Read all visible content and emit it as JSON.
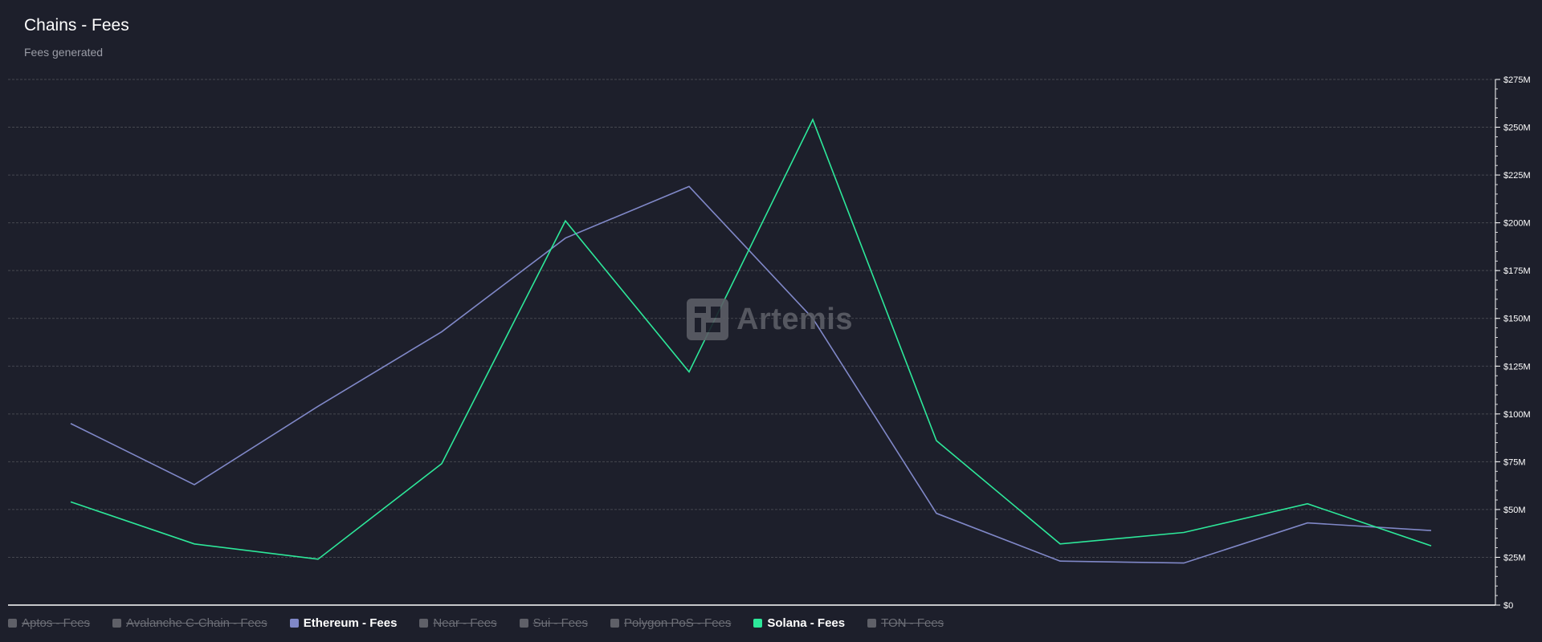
{
  "header": {
    "title": "Chains - Fees",
    "subtitle": "Fees generated"
  },
  "watermark": {
    "text": "Artemis"
  },
  "colors": {
    "ethereum": "#8088c8",
    "solana": "#2de89a",
    "disabled": "#5f6068",
    "grid": "#45474f",
    "axis": "#ffffff"
  },
  "legend": [
    {
      "label": "Aptos - Fees",
      "active": false,
      "color": "#5f6068"
    },
    {
      "label": "Avalanche C-Chain - Fees",
      "active": false,
      "color": "#5f6068"
    },
    {
      "label": "Ethereum - Fees",
      "active": true,
      "color": "#8088c8"
    },
    {
      "label": "Near - Fees",
      "active": false,
      "color": "#5f6068"
    },
    {
      "label": "Sui - Fees",
      "active": false,
      "color": "#5f6068"
    },
    {
      "label": "Polygon PoS - Fees",
      "active": false,
      "color": "#5f6068"
    },
    {
      "label": "Solana - Fees",
      "active": true,
      "color": "#2de89a"
    },
    {
      "label": "TON - Fees",
      "active": false,
      "color": "#5f6068"
    }
  ],
  "chart_data": {
    "type": "line",
    "title": "Chains - Fees",
    "subtitle": "Fees generated",
    "xlabel": "",
    "ylabel": "",
    "ylim": [
      0,
      275
    ],
    "y_unit": "M USD",
    "y_ticks": [
      0,
      25,
      50,
      75,
      100,
      125,
      150,
      175,
      200,
      225,
      250,
      275
    ],
    "y_tick_labels": [
      "$0",
      "$25M",
      "$50M",
      "$75M",
      "$100M",
      "$125M",
      "$150M",
      "$175M",
      "$200M",
      "$225M",
      "$250M",
      "$275M"
    ],
    "y_axis_position": "right",
    "grid": true,
    "legend_position": "bottom-left",
    "x": [
      1,
      2,
      3,
      4,
      5,
      6,
      7,
      8,
      9,
      10,
      11,
      12
    ],
    "series": [
      {
        "name": "Ethereum - Fees",
        "color": "#8088c8",
        "values": [
          95,
          63,
          104,
          143,
          192,
          219,
          150,
          48,
          23,
          22,
          43,
          39
        ]
      },
      {
        "name": "Solana - Fees",
        "color": "#2de89a",
        "values": [
          54,
          32,
          24,
          74,
          201,
          122,
          254,
          86,
          32,
          38,
          53,
          31
        ]
      }
    ]
  }
}
